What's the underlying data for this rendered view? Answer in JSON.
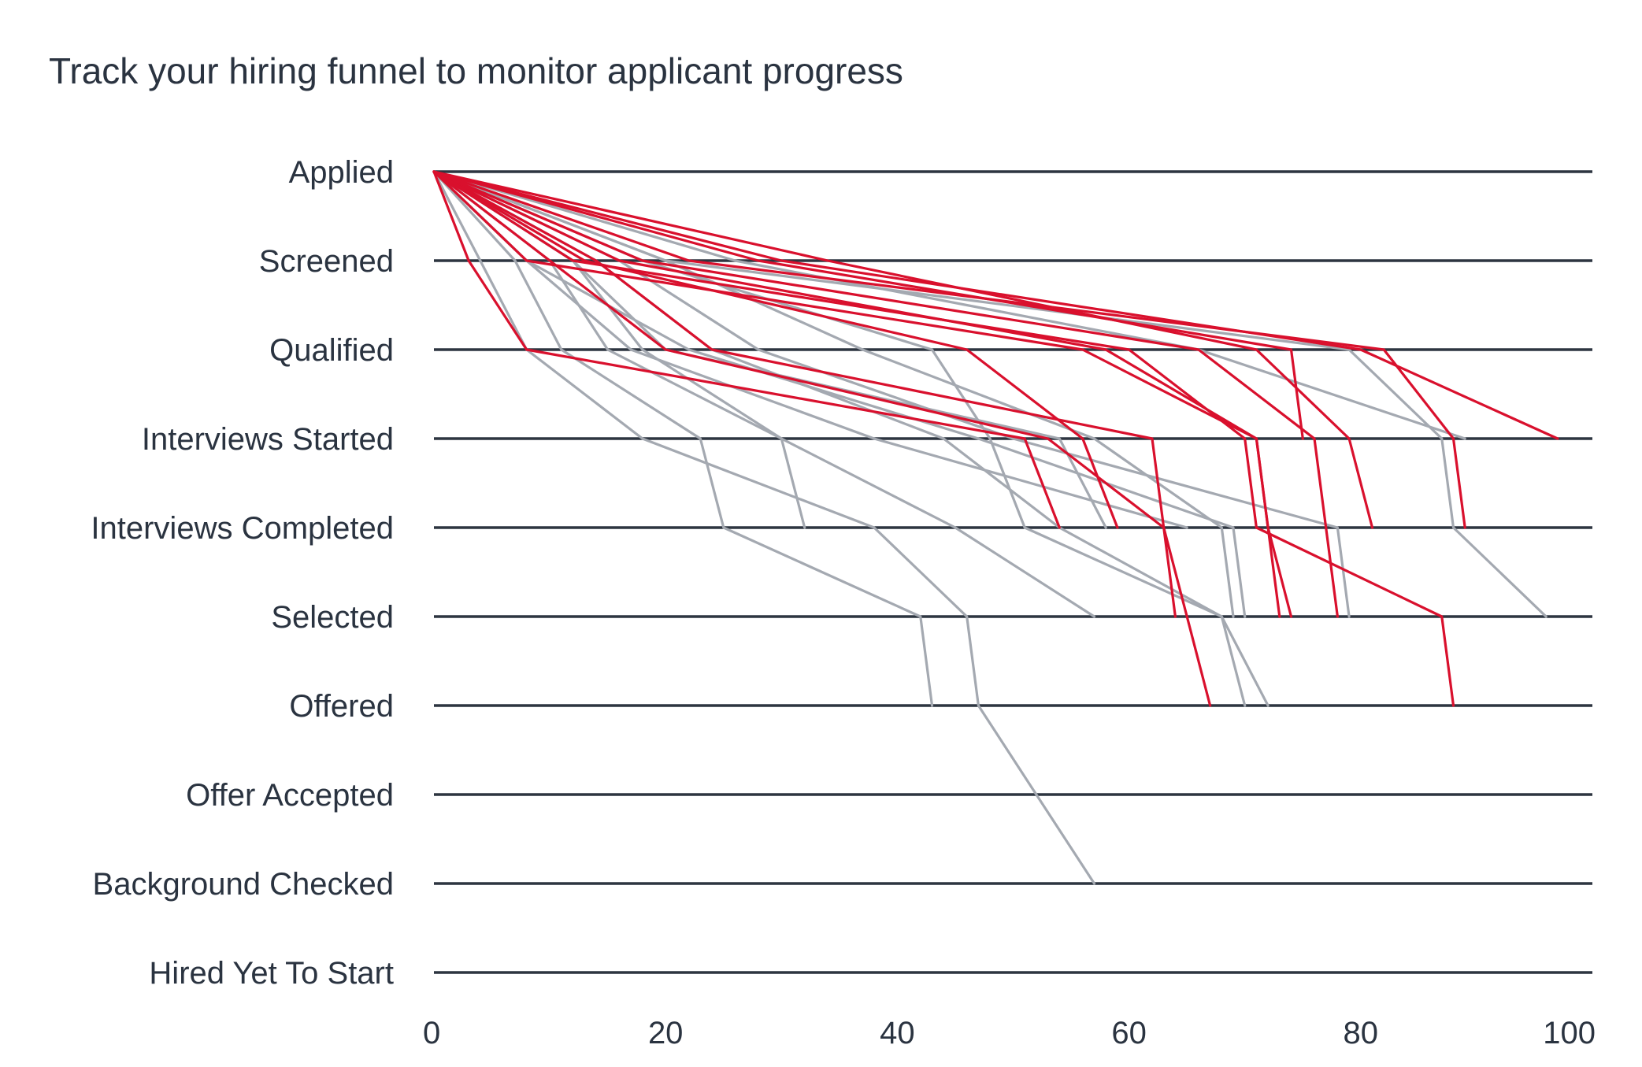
{
  "chart_data": {
    "type": "line",
    "title": "Track your hiring funnel to monitor applicant progress",
    "xlabel": "",
    "ylabel": "",
    "xlim": [
      0,
      100
    ],
    "xticks": [
      "0",
      "20",
      "40",
      "60",
      "80",
      "100"
    ],
    "xtick_values": [
      0,
      20,
      40,
      60,
      80,
      100
    ],
    "categories": [
      "Applied",
      "Screened",
      "Qualified",
      "Interviews Started",
      "Interviews Completed",
      "Selected",
      "Offered",
      "Offer Accepted",
      "Background Checked",
      "Hired Yet To Start"
    ],
    "colors": {
      "highlight": "#d9102d",
      "muted": "#a4a9b1",
      "grid": "#2d3540",
      "text": "#2a3340"
    },
    "series": [
      {
        "name": "gray-1",
        "group": "muted",
        "x": [
          0,
          7,
          11,
          23,
          25,
          42,
          43
        ]
      },
      {
        "name": "gray-2",
        "group": "muted",
        "x": [
          0,
          10,
          15,
          30,
          32
        ]
      },
      {
        "name": "gray-3",
        "group": "muted",
        "x": [
          0,
          4,
          8,
          18,
          38,
          46,
          47,
          52,
          57
        ]
      },
      {
        "name": "gray-4",
        "group": "muted",
        "x": [
          0,
          12,
          18,
          30,
          45,
          57
        ]
      },
      {
        "name": "gray-5",
        "group": "muted",
        "x": [
          0,
          14,
          24,
          44,
          54,
          68,
          72
        ]
      },
      {
        "name": "gray-6",
        "group": "muted",
        "x": [
          0,
          18,
          43,
          48,
          51,
          68,
          70
        ]
      },
      {
        "name": "gray-7",
        "group": "muted",
        "x": [
          0,
          8,
          17,
          38,
          65
        ]
      },
      {
        "name": "gray-8",
        "group": "muted",
        "x": [
          0,
          12,
          20,
          54,
          58
        ]
      },
      {
        "name": "gray-9",
        "group": "muted",
        "x": [
          0,
          16,
          28,
          50,
          78,
          79
        ]
      },
      {
        "name": "gray-10",
        "group": "muted",
        "x": [
          0,
          8,
          22,
          47,
          69,
          70
        ]
      },
      {
        "name": "gray-11",
        "group": "muted",
        "x": [
          0,
          20,
          37,
          57,
          68,
          69
        ]
      },
      {
        "name": "gray-12",
        "group": "muted",
        "x": [
          0,
          26,
          66,
          89
        ]
      },
      {
        "name": "gray-13",
        "group": "muted",
        "x": [
          0,
          20,
          79,
          87,
          88,
          96
        ]
      },
      {
        "name": "red-1",
        "group": "highlight",
        "x": [
          0,
          3,
          8,
          51,
          54
        ]
      },
      {
        "name": "red-2",
        "group": "highlight",
        "x": [
          0,
          10,
          20,
          53,
          63,
          64
        ]
      },
      {
        "name": "red-3",
        "group": "highlight",
        "x": [
          0,
          14,
          24,
          62,
          63,
          65,
          67
        ]
      },
      {
        "name": "red-4",
        "group": "highlight",
        "x": [
          0,
          8,
          56,
          71,
          72,
          73
        ]
      },
      {
        "name": "red-5",
        "group": "highlight",
        "x": [
          0,
          12,
          60,
          70,
          71,
          87,
          88
        ]
      },
      {
        "name": "red-6",
        "group": "highlight",
        "x": [
          0,
          16,
          58,
          71,
          72,
          74
        ]
      },
      {
        "name": "red-7",
        "group": "highlight",
        "x": [
          0,
          18,
          66,
          76,
          77,
          78
        ]
      },
      {
        "name": "red-8",
        "group": "highlight",
        "x": [
          0,
          34,
          71,
          79,
          81
        ]
      },
      {
        "name": "red-9",
        "group": "highlight",
        "x": [
          0,
          22,
          82,
          88,
          89
        ]
      },
      {
        "name": "red-10",
        "group": "highlight",
        "x": [
          0,
          30,
          80,
          97
        ]
      },
      {
        "name": "red-11",
        "group": "highlight",
        "x": [
          0,
          13,
          46,
          56,
          59
        ]
      },
      {
        "name": "red-12",
        "group": "highlight",
        "x": [
          0,
          28,
          74,
          75
        ]
      }
    ]
  }
}
